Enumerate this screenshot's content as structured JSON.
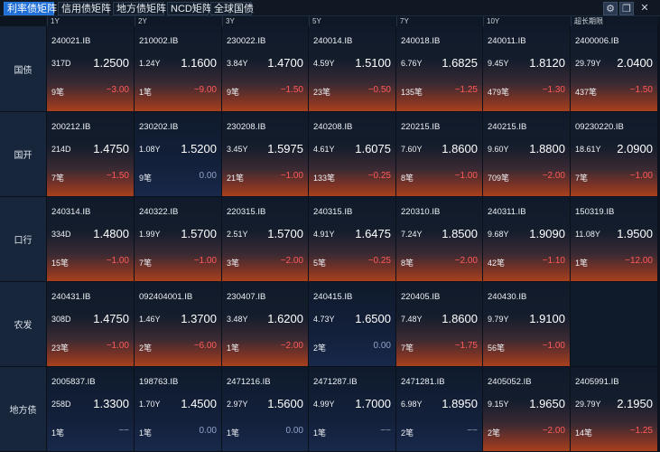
{
  "tabs": [
    {
      "label": "利率债矩阵",
      "active": true
    },
    {
      "label": "信用债矩阵",
      "active": false
    },
    {
      "label": "地方债矩阵",
      "active": false
    },
    {
      "label": "NCD矩阵",
      "active": false
    },
    {
      "label": "全球国债",
      "active": false
    }
  ],
  "window_controls": {
    "settings_icon": "gear-icon",
    "copy_icon": "copy-window-icon",
    "close_label": "✕"
  },
  "columns": [
    "1Y",
    "2Y",
    "3Y",
    "5Y",
    "7Y",
    "10Y",
    "超长期限"
  ],
  "colors": {
    "negative": "#ff5a5a",
    "neutral_change": "#8fa3c8",
    "active_tab": "#1f6fd6"
  },
  "rows": [
    {
      "label": "国债",
      "cells": [
        {
          "code": "240021.IB",
          "term": "317D",
          "price": "1.2500",
          "count": "9笔",
          "change": "−3.00",
          "tone": "neg"
        },
        {
          "code": "210002.IB",
          "term": "1.24Y",
          "price": "1.1600",
          "count": "1笔",
          "change": "−9.00",
          "tone": "neg"
        },
        {
          "code": "230022.IB",
          "term": "3.84Y",
          "price": "1.4700",
          "count": "9笔",
          "change": "−1.50",
          "tone": "neg"
        },
        {
          "code": "240014.IB",
          "term": "4.59Y",
          "price": "1.5100",
          "count": "23笔",
          "change": "−0.50",
          "tone": "neg"
        },
        {
          "code": "240018.IB",
          "term": "6.76Y",
          "price": "1.6825",
          "count": "135笔",
          "change": "−1.25",
          "tone": "neg"
        },
        {
          "code": "240011.IB",
          "term": "9.45Y",
          "price": "1.8120",
          "count": "479笔",
          "change": "−1.30",
          "tone": "neg"
        },
        {
          "code": "2400006.IB",
          "term": "29.79Y",
          "price": "2.0400",
          "count": "437笔",
          "change": "−1.50",
          "tone": "neg"
        }
      ]
    },
    {
      "label": "国开",
      "cells": [
        {
          "code": "200212.IB",
          "term": "214D",
          "price": "1.4750",
          "count": "7笔",
          "change": "−1.50",
          "tone": "neg"
        },
        {
          "code": "230202.IB",
          "term": "1.08Y",
          "price": "1.5200",
          "count": "9笔",
          "change": "0.00",
          "tone": "zero"
        },
        {
          "code": "230208.IB",
          "term": "3.45Y",
          "price": "1.5975",
          "count": "21笔",
          "change": "−1.00",
          "tone": "neg"
        },
        {
          "code": "240208.IB",
          "term": "4.61Y",
          "price": "1.6075",
          "count": "133笔",
          "change": "−0.25",
          "tone": "neg"
        },
        {
          "code": "220215.IB",
          "term": "7.60Y",
          "price": "1.8600",
          "count": "8笔",
          "change": "−1.00",
          "tone": "neg"
        },
        {
          "code": "240215.IB",
          "term": "9.60Y",
          "price": "1.8800",
          "count": "709笔",
          "change": "−2.00",
          "tone": "neg"
        },
        {
          "code": "09230220.IB",
          "term": "18.61Y",
          "price": "2.0900",
          "count": "7笔",
          "change": "−1.00",
          "tone": "neg"
        }
      ]
    },
    {
      "label": "口行",
      "cells": [
        {
          "code": "240314.IB",
          "term": "334D",
          "price": "1.4800",
          "count": "15笔",
          "change": "−1.00",
          "tone": "neg"
        },
        {
          "code": "240322.IB",
          "term": "1.99Y",
          "price": "1.5700",
          "count": "7笔",
          "change": "−1.00",
          "tone": "neg"
        },
        {
          "code": "220315.IB",
          "term": "2.51Y",
          "price": "1.5700",
          "count": "3笔",
          "change": "−2.00",
          "tone": "neg"
        },
        {
          "code": "240315.IB",
          "term": "4.91Y",
          "price": "1.6475",
          "count": "5笔",
          "change": "−0.25",
          "tone": "neg"
        },
        {
          "code": "220310.IB",
          "term": "7.24Y",
          "price": "1.8500",
          "count": "8笔",
          "change": "−2.00",
          "tone": "neg"
        },
        {
          "code": "240311.IB",
          "term": "9.68Y",
          "price": "1.9090",
          "count": "42笔",
          "change": "−1.10",
          "tone": "neg"
        },
        {
          "code": "150319.IB",
          "term": "11.08Y",
          "price": "1.9500",
          "count": "1笔",
          "change": "−12.00",
          "tone": "neg"
        }
      ]
    },
    {
      "label": "农发",
      "cells": [
        {
          "code": "240431.IB",
          "term": "308D",
          "price": "1.4750",
          "count": "23笔",
          "change": "−1.00",
          "tone": "neg"
        },
        {
          "code": "092404001.IB",
          "term": "1.46Y",
          "price": "1.3700",
          "count": "2笔",
          "change": "−6.00",
          "tone": "neg"
        },
        {
          "code": "230407.IB",
          "term": "3.48Y",
          "price": "1.6200",
          "count": "1笔",
          "change": "−2.00",
          "tone": "neg"
        },
        {
          "code": "240415.IB",
          "term": "4.73Y",
          "price": "1.6500",
          "count": "2笔",
          "change": "0.00",
          "tone": "zero"
        },
        {
          "code": "220405.IB",
          "term": "7.48Y",
          "price": "1.8600",
          "count": "7笔",
          "change": "−1.75",
          "tone": "neg"
        },
        {
          "code": "240430.IB",
          "term": "9.79Y",
          "price": "1.9100",
          "count": "56笔",
          "change": "−1.00",
          "tone": "neg"
        },
        null
      ]
    },
    {
      "label": "地方债",
      "cells": [
        {
          "code": "2005837.IB",
          "term": "258D",
          "price": "1.3300",
          "count": "1笔",
          "change": "−−",
          "tone": "na"
        },
        {
          "code": "198763.IB",
          "term": "1.70Y",
          "price": "1.4500",
          "count": "1笔",
          "change": "0.00",
          "tone": "zero"
        },
        {
          "code": "2471216.IB",
          "term": "2.97Y",
          "price": "1.5600",
          "count": "1笔",
          "change": "0.00",
          "tone": "zero"
        },
        {
          "code": "2471287.IB",
          "term": "4.99Y",
          "price": "1.7000",
          "count": "1笔",
          "change": "−−",
          "tone": "na"
        },
        {
          "code": "2471281.IB",
          "term": "6.98Y",
          "price": "1.8950",
          "count": "2笔",
          "change": "−−",
          "tone": "na"
        },
        {
          "code": "2405052.IB",
          "term": "9.15Y",
          "price": "1.9650",
          "count": "2笔",
          "change": "−2.00",
          "tone": "neg"
        },
        {
          "code": "2405991.IB",
          "term": "29.79Y",
          "price": "2.1950",
          "count": "14笔",
          "change": "−1.25",
          "tone": "neg"
        }
      ]
    }
  ]
}
